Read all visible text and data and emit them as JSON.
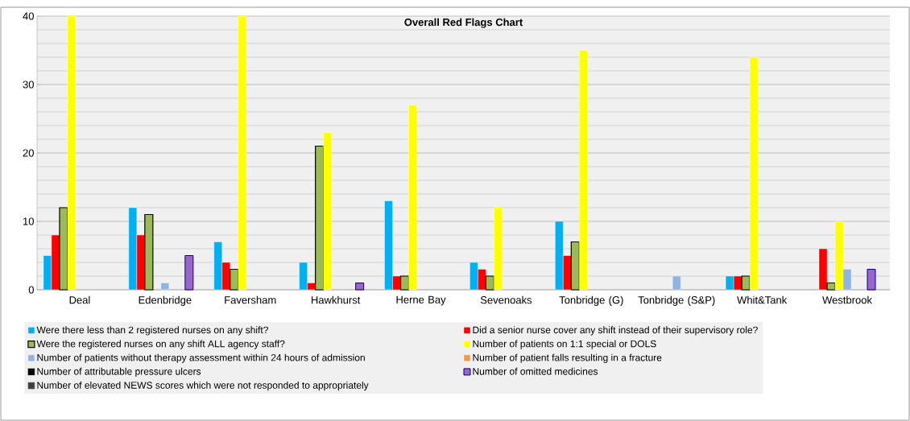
{
  "chart_data": {
    "type": "bar",
    "title": "Overall Red Flags Chart",
    "categories": [
      "Deal",
      "Edenbridge",
      "Faversham",
      "Hawkhurst",
      "Herne Bay",
      "Sevenoaks",
      "Tonbridge (G)",
      "Tonbridge (S&P)",
      "Whit&Tank",
      "Westbrook"
    ],
    "series": [
      {
        "name": "Were there less than 2 registered nurses on any shift?",
        "color": "#00b0f0",
        "values": [
          5,
          12,
          7,
          4,
          13,
          4,
          10,
          null,
          2,
          null
        ]
      },
      {
        "name": "Did a senior nurse cover any shift instead of their supervisory role?",
        "color": "#ff0000",
        "values": [
          8,
          8,
          4,
          1,
          2,
          3,
          5,
          null,
          2,
          6
        ]
      },
      {
        "name": "Were the registered nurses on any shift ALL agency staff?",
        "color": "#9bbb59",
        "values": [
          12,
          11,
          3,
          21,
          2,
          2,
          7,
          null,
          2,
          1
        ]
      },
      {
        "name": "Number of patients on 1:1 special or DOLS",
        "color": "#ffff00",
        "values": [
          40,
          null,
          40,
          23,
          27,
          12,
          35,
          null,
          34,
          10
        ]
      },
      {
        "name": "Number of patients without therapy assessment within 24 hours of admission",
        "color": "#8db4e2",
        "values": [
          null,
          1,
          null,
          null,
          null,
          null,
          null,
          2,
          null,
          3
        ]
      },
      {
        "name": "Number of patient falls resulting in a fracture",
        "color": "#f79646",
        "values": [
          null,
          null,
          null,
          null,
          null,
          null,
          null,
          null,
          null,
          null
        ]
      },
      {
        "name": "Number of attributable pressure ulcers",
        "color": "#000000",
        "values": [
          null,
          null,
          null,
          null,
          null,
          null,
          null,
          null,
          null,
          null
        ]
      },
      {
        "name": "Number of omitted medicines",
        "color": "#9966cc",
        "values": [
          null,
          5,
          null,
          1,
          null,
          null,
          null,
          null,
          null,
          3
        ]
      },
      {
        "name": "Number of elevated NEWS scores which were not responded to appropriately",
        "color": "#404040",
        "values": [
          null,
          null,
          null,
          null,
          null,
          null,
          null,
          null,
          null,
          null
        ]
      }
    ],
    "ylim": [
      0,
      40
    ],
    "yticks": [
      0,
      10,
      20,
      30,
      40
    ],
    "grid": "y",
    "legend": "bottom"
  }
}
